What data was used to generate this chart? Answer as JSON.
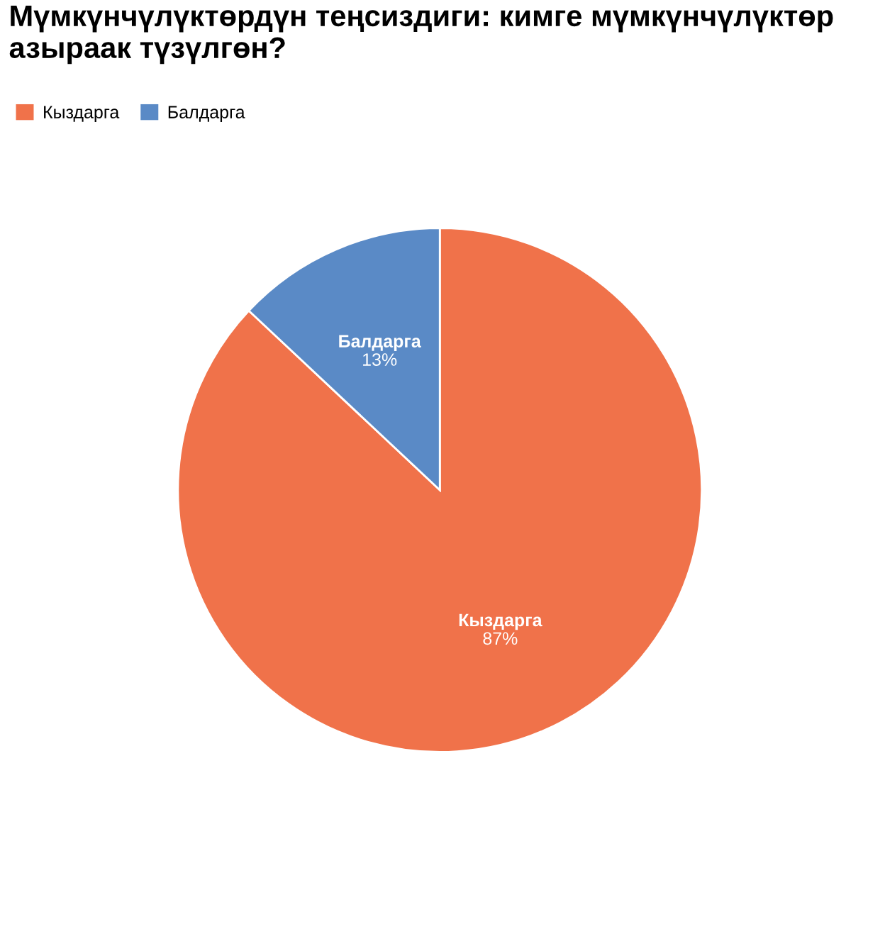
{
  "chart_data": {
    "type": "pie",
    "title": "Мүмкүнчүлүктөрдүн теңсиздиги: кимге мүмкүнчүлүктөр азыраак түзүлгөн?",
    "categories": [
      "Кыздарга",
      "Балдарга"
    ],
    "values": [
      87,
      13
    ],
    "colors": [
      "#f0724a",
      "#5a8ac6"
    ],
    "value_labels": [
      "87%",
      "13%"
    ],
    "legend": "top left"
  }
}
